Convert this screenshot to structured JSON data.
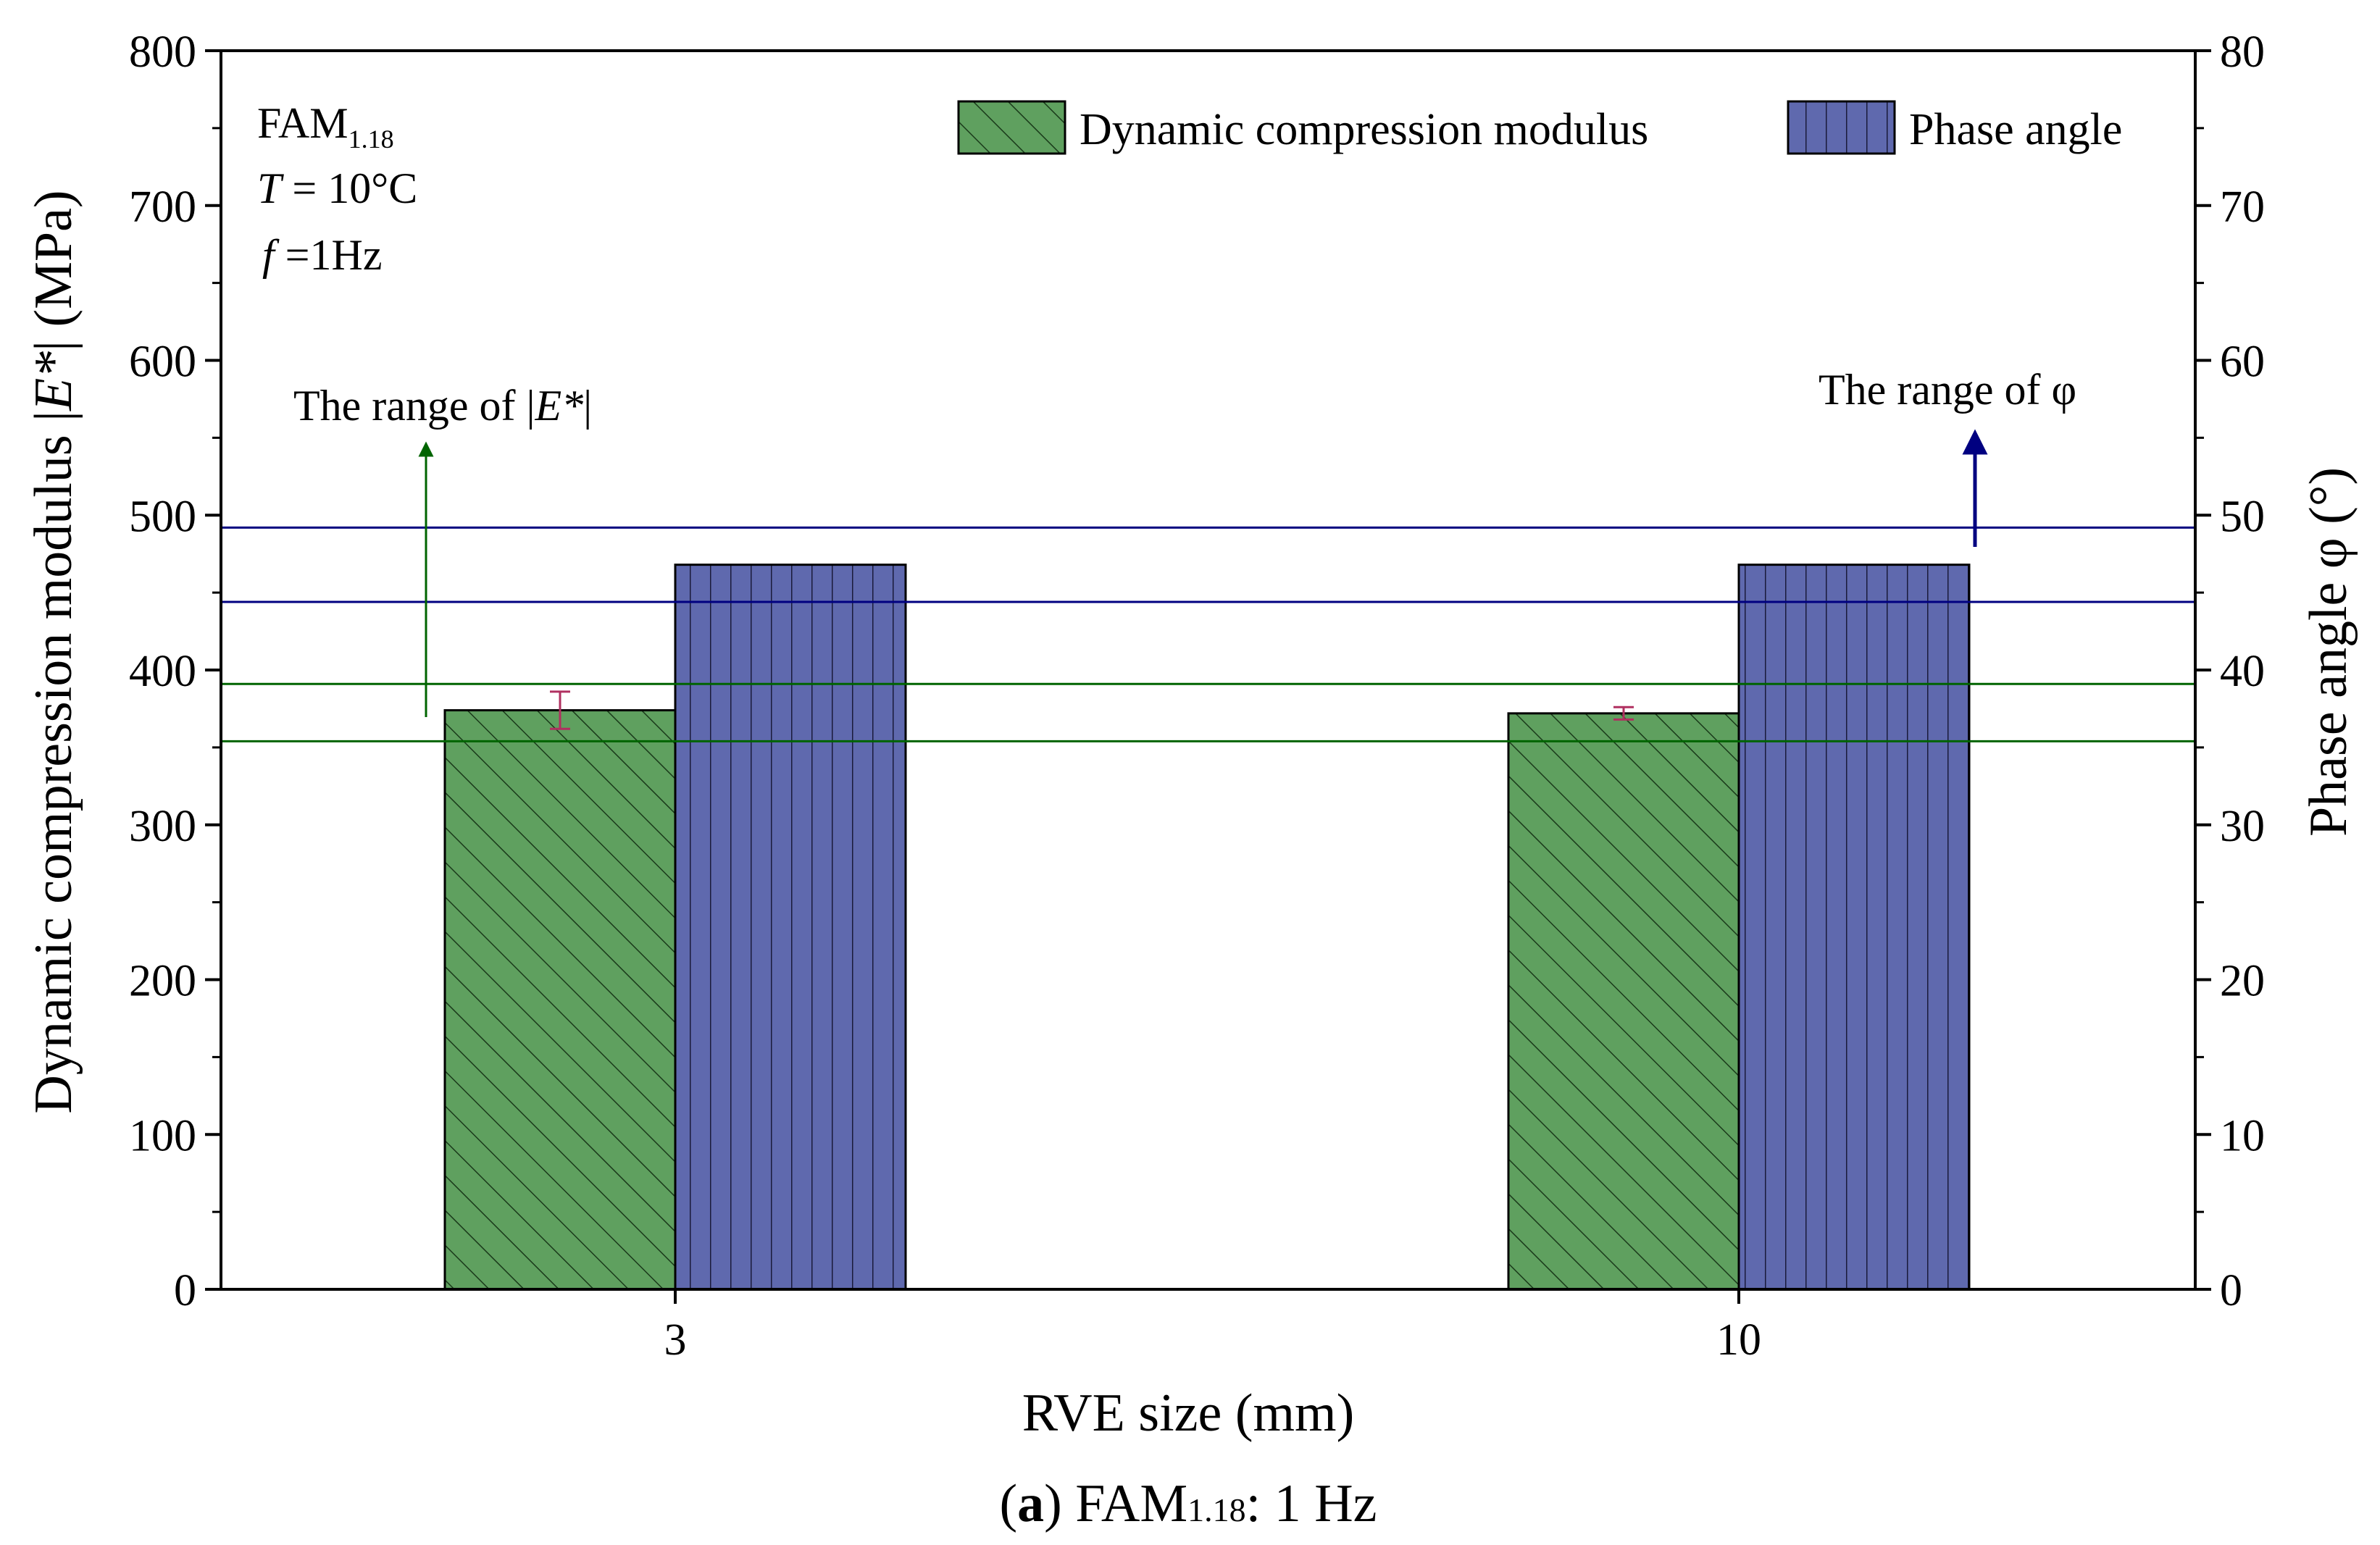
{
  "chart_data": {
    "type": "bar",
    "categories": [
      "3",
      "10"
    ],
    "series": [
      {
        "name": "Dynamic compression modulus",
        "axis": "left",
        "values": [
          374,
          372
        ],
        "error": [
          12,
          4
        ],
        "color": "#5fa05f",
        "pattern": "diagonal-hatch"
      },
      {
        "name": "Phase angle",
        "axis": "right",
        "values": [
          46.8,
          46.8
        ],
        "color": "#5f69ae",
        "pattern": "vertical-lines"
      }
    ],
    "xlabel": "RVE size (mm)",
    "ylabel_left_prefix": "Dynamic compression modulus |",
    "ylabel_left_var": "E*",
    "ylabel_left_suffix": "| (MPa)",
    "ylabel_right": "Phase angle φ (°)",
    "ylim_left": [
      0,
      800
    ],
    "ylim_right": [
      0,
      80
    ],
    "yticks_left": [
      0,
      100,
      200,
      300,
      400,
      500,
      600,
      700,
      800
    ],
    "yticks_right": [
      0,
      10,
      20,
      30,
      40,
      50,
      60,
      70,
      80
    ],
    "range_lines_left": [
      {
        "value": 391,
        "color": "#006400"
      },
      {
        "value": 354,
        "color": "#006400"
      }
    ],
    "range_lines_right": [
      {
        "value": 49.2,
        "color": "#000080"
      },
      {
        "value": 44.4,
        "color": "#000080"
      }
    ],
    "annotations": {
      "material_main": "FAM",
      "material_sub": "1.18",
      "temp_var": "T",
      "temp_rest": " = 10°C",
      "freq_var": "f",
      "freq_rest": " =1Hz",
      "range_e_prefix": "The range of |",
      "range_e_var": "E*",
      "range_e_suffix": "|",
      "range_phi": "The range of  φ"
    },
    "legend_position": "top-right",
    "caption": {
      "letter": "a",
      "open": "(",
      "close": ")",
      "main": " FAM",
      "sub": "1.18",
      "rest": ": 1 Hz"
    }
  }
}
